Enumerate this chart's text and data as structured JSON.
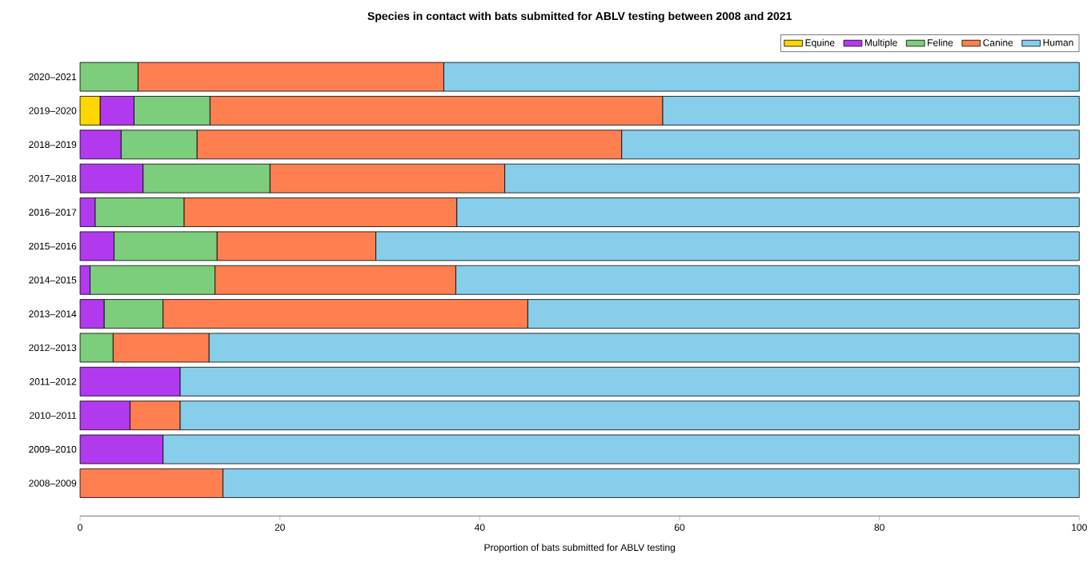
{
  "chart_data": {
    "type": "bar",
    "orientation": "horizontal",
    "stacked": true,
    "title": "Species in contact with bats submitted for ABLV testing between 2008 and 2021",
    "xlabel": "Proportion of bats submitted for ABLV testing",
    "categories": [
      "2020–2021",
      "2019–2020",
      "2018–2019",
      "2017–2018",
      "2016–2017",
      "2015–2016",
      "2014–2015",
      "2013–2014",
      "2012–2013",
      "2011–2012",
      "2010–2011",
      "2009–2010",
      "2008–2009"
    ],
    "series": [
      {
        "name": "Equine",
        "color": "#ffd700",
        "values": [
          0,
          2.0,
          0,
          0,
          0,
          0,
          0,
          0,
          0,
          0,
          0,
          0,
          0
        ]
      },
      {
        "name": "Multiple",
        "color": "#b23aee",
        "values": [
          0,
          3.4,
          4.1,
          6.3,
          1.5,
          3.4,
          1.0,
          2.4,
          0,
          10.0,
          5.0,
          8.3,
          0
        ]
      },
      {
        "name": "Feline",
        "color": "#7ccd7c",
        "values": [
          5.8,
          7.6,
          7.6,
          12.7,
          8.9,
          10.3,
          12.5,
          5.9,
          3.3,
          0,
          0,
          0,
          0
        ]
      },
      {
        "name": "Canine",
        "color": "#ff7f50",
        "values": [
          30.6,
          45.3,
          42.5,
          23.5,
          27.3,
          15.9,
          24.1,
          36.5,
          9.6,
          0,
          5.0,
          0,
          14.3
        ]
      },
      {
        "name": "Human",
        "color": "#87ceeb",
        "values": [
          63.6,
          41.7,
          45.8,
          57.5,
          62.3,
          70.4,
          62.4,
          55.2,
          87.1,
          90.0,
          90.0,
          91.7,
          85.7
        ]
      }
    ],
    "xlim": [
      0,
      100
    ],
    "xticks": [
      0,
      20,
      40,
      60,
      80,
      100
    ],
    "legend": "top right"
  }
}
